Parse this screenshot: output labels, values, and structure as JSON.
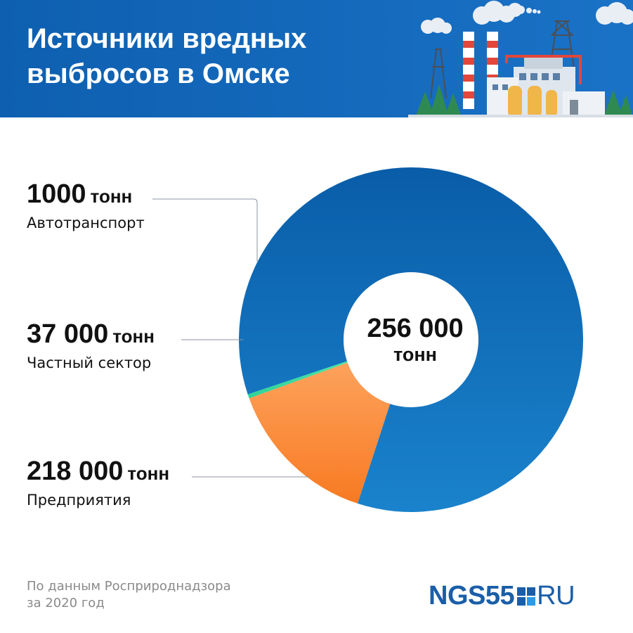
{
  "header": {
    "title_line1": "Источники вредных",
    "title_line2": "выбросов в Омске",
    "background_color": "#1566b9"
  },
  "chart_data": {
    "type": "pie",
    "title": "Источники вредных выбросов в Омске",
    "donut": true,
    "center_label": {
      "value": "256 000",
      "unit": "тонн"
    },
    "total": 256000,
    "unit": "тонн",
    "slices": [
      {
        "label": "Автотранспорт",
        "value": 1000,
        "value_text": "1000",
        "unit": "тонн",
        "color": "#3de3a0"
      },
      {
        "label": "Частный сектор",
        "value": 37000,
        "value_text": "37 000",
        "unit": "тонн",
        "color": "#fa8a38"
      },
      {
        "label": "Предприятия",
        "value": 218000,
        "value_text": "218 000",
        "unit": "тонн",
        "color": "#0f6cb8"
      }
    ]
  },
  "footer": {
    "source_line1": "По данным Росприроднадзора",
    "source_line2": "за 2020 год",
    "logo_left": "NGS55",
    "logo_right": "RU"
  }
}
